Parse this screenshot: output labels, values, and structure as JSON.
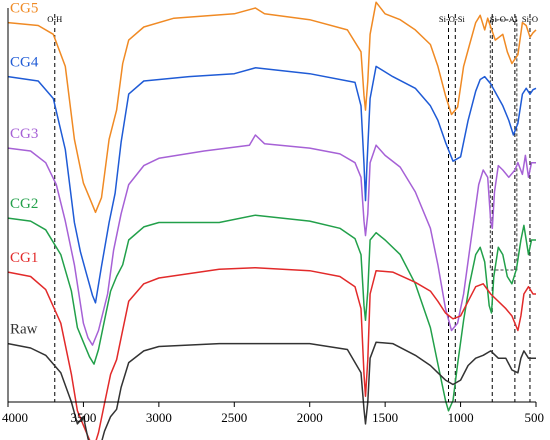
{
  "chart_data": {
    "type": "line",
    "title": "",
    "xlabel": "",
    "ylabel": "",
    "xlim": [
      4000,
      500
    ],
    "x_reversed": true,
    "yaxis_visible": false,
    "grid": false,
    "x_ticks": [
      {
        "value": 4000,
        "label": "4000"
      },
      {
        "value": 3500,
        "label": "3500"
      },
      {
        "value": 3000,
        "label": "3000"
      },
      {
        "value": 2500,
        "label": "2500"
      },
      {
        "value": 2000,
        "label": "2000"
      },
      {
        "value": 1500,
        "label": "1500"
      },
      {
        "value": 1000,
        "label": "1000"
      },
      {
        "value": 500,
        "label": "500"
      }
    ],
    "annotations": [
      {
        "label": "O-H",
        "lines": [
          3690
        ]
      },
      {
        "label": "Si-O-Si",
        "lines": [
          1080,
          1035
        ]
      },
      {
        "label": "Si-O-Al",
        "lines": [
          790,
          640
        ]
      },
      {
        "label": "Si-O",
        "lines": [
          540
        ]
      }
    ],
    "series": [
      {
        "name": "CG5",
        "color": "#F08A24",
        "offset": 18.0,
        "points": [
          [
            4000,
            0
          ],
          [
            3800,
            -0.2
          ],
          [
            3700,
            -0.8
          ],
          [
            3620,
            -3
          ],
          [
            3560,
            -8
          ],
          [
            3500,
            -11
          ],
          [
            3460,
            -12
          ],
          [
            3420,
            -13
          ],
          [
            3380,
            -12
          ],
          [
            3330,
            -8
          ],
          [
            3280,
            -6
          ],
          [
            3240,
            -2.8
          ],
          [
            3200,
            -1.2
          ],
          [
            3100,
            -0.3
          ],
          [
            2900,
            0.3
          ],
          [
            2500,
            0.6
          ],
          [
            2360,
            1.0
          ],
          [
            2300,
            0.6
          ],
          [
            2000,
            0.2
          ],
          [
            1750,
            -0.5
          ],
          [
            1660,
            -2
          ],
          [
            1640,
            -5
          ],
          [
            1630,
            -6
          ],
          [
            1615,
            -4
          ],
          [
            1600,
            -0.8
          ],
          [
            1560,
            1.4
          ],
          [
            1500,
            0.6
          ],
          [
            1400,
            0.2
          ],
          [
            1300,
            -0.5
          ],
          [
            1200,
            -1.5
          ],
          [
            1150,
            -3
          ],
          [
            1100,
            -5
          ],
          [
            1060,
            -6.3
          ],
          [
            1020,
            -5.8
          ],
          [
            980,
            -3
          ],
          [
            940,
            -1.5
          ],
          [
            900,
            0
          ],
          [
            870,
            0.5
          ],
          [
            840,
            -0.5
          ],
          [
            820,
            0.3
          ],
          [
            800,
            -0.3
          ],
          [
            770,
            -1.2
          ],
          [
            720,
            -0.8
          ],
          [
            690,
            -2
          ],
          [
            660,
            -2.8
          ],
          [
            620,
            -2.2
          ],
          [
            590,
            0
          ],
          [
            565,
            -0.2
          ],
          [
            540,
            -1
          ],
          [
            520,
            -0.7
          ],
          [
            500,
            -0.5
          ]
        ]
      },
      {
        "name": "CG4",
        "color": "#1F5BD6",
        "offset": 14.3,
        "points": [
          [
            4000,
            0
          ],
          [
            3800,
            -0.3
          ],
          [
            3700,
            -1.5
          ],
          [
            3620,
            -5
          ],
          [
            3560,
            -10
          ],
          [
            3520,
            -12
          ],
          [
            3480,
            -13.5
          ],
          [
            3440,
            -15
          ],
          [
            3420,
            -15.5
          ],
          [
            3380,
            -13
          ],
          [
            3330,
            -10
          ],
          [
            3290,
            -8
          ],
          [
            3250,
            -4.5
          ],
          [
            3200,
            -1.2
          ],
          [
            3100,
            -0.3
          ],
          [
            2800,
            0
          ],
          [
            2500,
            0.2
          ],
          [
            2360,
            0.6
          ],
          [
            2000,
            0.2
          ],
          [
            1700,
            -0.4
          ],
          [
            1660,
            -2
          ],
          [
            1640,
            -6
          ],
          [
            1630,
            -8.5
          ],
          [
            1620,
            -6
          ],
          [
            1600,
            -1.5
          ],
          [
            1560,
            0.7
          ],
          [
            1450,
            0
          ],
          [
            1300,
            -0.8
          ],
          [
            1200,
            -2
          ],
          [
            1150,
            -3
          ],
          [
            1100,
            -4.5
          ],
          [
            1050,
            -5.8
          ],
          [
            1000,
            -5.5
          ],
          [
            950,
            -3
          ],
          [
            900,
            -1
          ],
          [
            870,
            -0.2
          ],
          [
            840,
            0
          ],
          [
            800,
            -0.5
          ],
          [
            720,
            -2
          ],
          [
            680,
            -3
          ],
          [
            650,
            -4
          ],
          [
            620,
            -3.2
          ],
          [
            590,
            -1.2
          ],
          [
            565,
            -0.8
          ],
          [
            540,
            -1.2
          ],
          [
            520,
            -0.9
          ],
          [
            500,
            -0.8
          ]
        ]
      },
      {
        "name": "CG3",
        "color": "#A661D6",
        "offset": 9.4,
        "points": [
          [
            4000,
            0
          ],
          [
            3850,
            -0.2
          ],
          [
            3750,
            -1
          ],
          [
            3680,
            -2.5
          ],
          [
            3620,
            -5
          ],
          [
            3560,
            -8
          ],
          [
            3500,
            -12
          ],
          [
            3470,
            -13
          ],
          [
            3440,
            -13.5
          ],
          [
            3400,
            -12.5
          ],
          [
            3340,
            -10
          ],
          [
            3300,
            -7
          ],
          [
            3250,
            -4.5
          ],
          [
            3200,
            -2.5
          ],
          [
            3100,
            -1.2
          ],
          [
            3000,
            -0.7
          ],
          [
            2700,
            -0.2
          ],
          [
            2400,
            0.2
          ],
          [
            2360,
            0.9
          ],
          [
            2300,
            0.3
          ],
          [
            2000,
            0
          ],
          [
            1800,
            -0.4
          ],
          [
            1700,
            -1
          ],
          [
            1660,
            -2
          ],
          [
            1640,
            -5
          ],
          [
            1630,
            -6
          ],
          [
            1615,
            -4.5
          ],
          [
            1600,
            -1
          ],
          [
            1560,
            0.2
          ],
          [
            1500,
            -0.5
          ],
          [
            1400,
            -1.3
          ],
          [
            1300,
            -3
          ],
          [
            1200,
            -5.5
          ],
          [
            1150,
            -8
          ],
          [
            1100,
            -11
          ],
          [
            1060,
            -12.5
          ],
          [
            1020,
            -12
          ],
          [
            980,
            -10
          ],
          [
            940,
            -7
          ],
          [
            900,
            -4
          ],
          [
            880,
            -2.5
          ],
          [
            850,
            -1.5
          ],
          [
            820,
            -2
          ],
          [
            800,
            -5
          ],
          [
            790,
            -5.5
          ],
          [
            775,
            -3
          ],
          [
            750,
            -1.2
          ],
          [
            720,
            -1.5
          ],
          [
            680,
            -2
          ],
          [
            640,
            -1.5
          ],
          [
            620,
            -1
          ],
          [
            590,
            -1.8
          ],
          [
            570,
            -0.5
          ],
          [
            550,
            -2
          ],
          [
            530,
            -1
          ],
          [
            500,
            -1
          ]
        ]
      },
      {
        "name": "CG2",
        "color": "#22A04A",
        "offset": 4.6,
        "points": [
          [
            4000,
            0
          ],
          [
            3850,
            -0.2
          ],
          [
            3750,
            -0.8
          ],
          [
            3650,
            -2.5
          ],
          [
            3580,
            -5
          ],
          [
            3540,
            -7.5
          ],
          [
            3500,
            -8.5
          ],
          [
            3460,
            -9.5
          ],
          [
            3430,
            -10
          ],
          [
            3400,
            -9
          ],
          [
            3360,
            -7
          ],
          [
            3320,
            -5
          ],
          [
            3280,
            -4
          ],
          [
            3240,
            -3.2
          ],
          [
            3200,
            -1.5
          ],
          [
            3100,
            -0.6
          ],
          [
            3000,
            -0.3
          ],
          [
            2600,
            -0.3
          ],
          [
            2360,
            0.2
          ],
          [
            2000,
            -0.2
          ],
          [
            1800,
            -0.7
          ],
          [
            1700,
            -1.4
          ],
          [
            1660,
            -2.5
          ],
          [
            1640,
            -6
          ],
          [
            1630,
            -7
          ],
          [
            1615,
            -5
          ],
          [
            1600,
            -1.5
          ],
          [
            1560,
            -1
          ],
          [
            1500,
            -1.5
          ],
          [
            1400,
            -2.5
          ],
          [
            1300,
            -4.5
          ],
          [
            1200,
            -7.5
          ],
          [
            1150,
            -10
          ],
          [
            1100,
            -12.5
          ],
          [
            1080,
            -13.2
          ],
          [
            1050,
            -12.5
          ],
          [
            1020,
            -10
          ],
          [
            980,
            -7
          ],
          [
            940,
            -4.5
          ],
          [
            900,
            -2.5
          ],
          [
            870,
            -2
          ],
          [
            840,
            -3
          ],
          [
            810,
            -6
          ],
          [
            795,
            -6.5
          ],
          [
            780,
            -4
          ],
          [
            750,
            -2
          ],
          [
            720,
            -2.5
          ],
          [
            690,
            -4
          ],
          [
            660,
            -4.5
          ],
          [
            630,
            -3.5
          ],
          [
            600,
            -1.5
          ],
          [
            580,
            -0.5
          ],
          [
            550,
            -2.5
          ],
          [
            530,
            -1.5
          ],
          [
            500,
            -1.5
          ]
        ]
      },
      {
        "name": "CG1",
        "color": "#E22A2A",
        "offset": 0.9,
        "points": [
          [
            4000,
            0
          ],
          [
            3850,
            -0.3
          ],
          [
            3750,
            -1.2
          ],
          [
            3650,
            -3.5
          ],
          [
            3580,
            -7
          ],
          [
            3540,
            -9.5
          ],
          [
            3500,
            -10.5
          ],
          [
            3460,
            -11.5
          ],
          [
            3430,
            -12
          ],
          [
            3400,
            -11
          ],
          [
            3360,
            -9
          ],
          [
            3320,
            -7
          ],
          [
            3280,
            -6
          ],
          [
            3250,
            -4.5
          ],
          [
            3200,
            -2
          ],
          [
            3100,
            -0.8
          ],
          [
            3000,
            -0.4
          ],
          [
            2600,
            0.2
          ],
          [
            2360,
            0.3
          ],
          [
            2000,
            0.1
          ],
          [
            1800,
            -0.3
          ],
          [
            1700,
            -1
          ],
          [
            1660,
            -2.5
          ],
          [
            1640,
            -7
          ],
          [
            1630,
            -8.5
          ],
          [
            1615,
            -6
          ],
          [
            1600,
            -1.5
          ],
          [
            1560,
            0.1
          ],
          [
            1450,
            0
          ],
          [
            1300,
            -0.7
          ],
          [
            1200,
            -1.3
          ],
          [
            1150,
            -2
          ],
          [
            1100,
            -2.8
          ],
          [
            1050,
            -3.2
          ],
          [
            1000,
            -3
          ],
          [
            950,
            -2
          ],
          [
            900,
            -1
          ],
          [
            850,
            -0.8
          ],
          [
            800,
            -1.5
          ],
          [
            700,
            -2.5
          ],
          [
            660,
            -3
          ],
          [
            620,
            -4
          ],
          [
            600,
            -3
          ],
          [
            580,
            -1.5
          ],
          [
            550,
            -1
          ],
          [
            520,
            -1.5
          ],
          [
            500,
            -1.5
          ]
        ]
      },
      {
        "name": "Raw",
        "color": "#333333",
        "offset": -4.0,
        "points": [
          [
            4000,
            0
          ],
          [
            3850,
            -0.3
          ],
          [
            3750,
            -0.8
          ],
          [
            3650,
            -2
          ],
          [
            3580,
            -4
          ],
          [
            3540,
            -5.5
          ],
          [
            3500,
            -5
          ],
          [
            3470,
            -6.5
          ],
          [
            3440,
            -7.5
          ],
          [
            3420,
            -8
          ],
          [
            3400,
            -7.5
          ],
          [
            3360,
            -6
          ],
          [
            3320,
            -5
          ],
          [
            3280,
            -4.5
          ],
          [
            3250,
            -3
          ],
          [
            3200,
            -1.3
          ],
          [
            3100,
            -0.5
          ],
          [
            3000,
            -0.2
          ],
          [
            2600,
            0
          ],
          [
            2000,
            0
          ],
          [
            1750,
            -0.4
          ],
          [
            1660,
            -2
          ],
          [
            1640,
            -4.5
          ],
          [
            1630,
            -5.5
          ],
          [
            1615,
            -4
          ],
          [
            1600,
            -1
          ],
          [
            1560,
            0.1
          ],
          [
            1450,
            0
          ],
          [
            1300,
            -0.8
          ],
          [
            1200,
            -1.5
          ],
          [
            1150,
            -2
          ],
          [
            1100,
            -2.5
          ],
          [
            1050,
            -2.8
          ],
          [
            1000,
            -2.5
          ],
          [
            950,
            -1.5
          ],
          [
            900,
            -1
          ],
          [
            850,
            -0.8
          ],
          [
            800,
            -0.5
          ],
          [
            750,
            -1
          ],
          [
            700,
            -1
          ],
          [
            660,
            -1.8
          ],
          [
            620,
            -2
          ],
          [
            600,
            -1
          ],
          [
            580,
            -0.5
          ],
          [
            550,
            -1
          ],
          [
            520,
            -1
          ],
          [
            500,
            -1
          ]
        ]
      }
    ]
  }
}
